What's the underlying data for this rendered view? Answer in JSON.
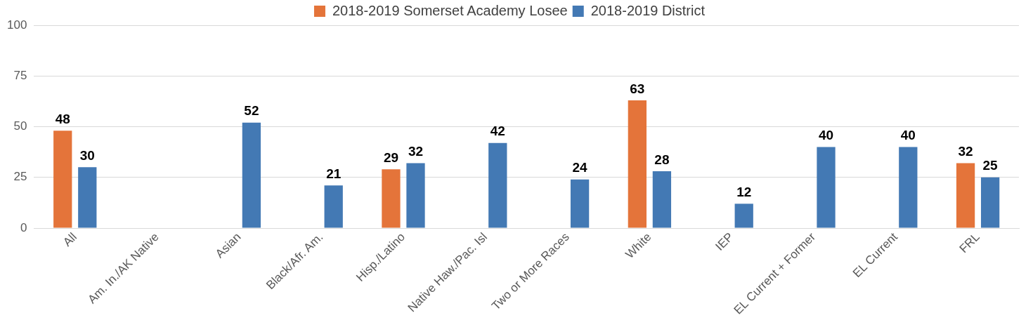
{
  "chart_data": {
    "type": "bar",
    "categories": [
      "All",
      "Am. In./AK Native",
      "Asian",
      "Black/Afr. Am.",
      "Hisp./Latino",
      "Native Haw./Pac. Isl",
      "Two or More Races",
      "White",
      "IEP",
      "EL Current + Former",
      "EL Current",
      "FRL"
    ],
    "series": [
      {
        "name": "2018-2019 Somerset Academy Losee",
        "color": "#e4743a",
        "values": [
          48,
          null,
          null,
          null,
          29,
          null,
          null,
          63,
          null,
          null,
          null,
          32
        ]
      },
      {
        "name": "2018-2019 District",
        "color": "#4379b4",
        "values": [
          30,
          null,
          52,
          21,
          32,
          42,
          24,
          28,
          12,
          40,
          40,
          25
        ]
      }
    ],
    "ylim": [
      0,
      100
    ],
    "yticks": [
      0,
      25,
      50,
      75,
      100
    ],
    "grid": "y",
    "legend": "top",
    "data_labels": true
  }
}
